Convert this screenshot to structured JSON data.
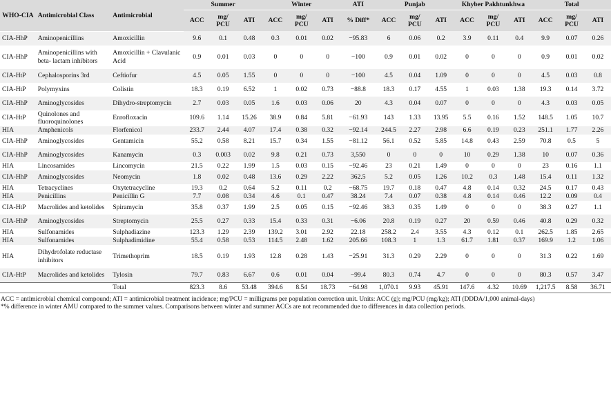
{
  "headers": {
    "who_cia": "WHO-CIA",
    "class": "Antimicrobial Class",
    "antimicrobial": "Antimicrobial",
    "groups": [
      "Summer",
      "Winter",
      "ATI",
      "Punjab",
      "Khyber Pakhtunkhwa",
      "Total"
    ],
    "subs": [
      "ACC",
      "mg/ PCU",
      "ATI",
      "ACC",
      "mg/ PCU",
      "ATI",
      "% Diff*",
      "ACC",
      "mg/ PCU",
      "ATI",
      "ACC",
      "mg/ PCU",
      "ATI",
      "ACC",
      "mg/ PCU",
      "ATI"
    ]
  },
  "rows": [
    [
      "CIA-HhP",
      "Aminopenicillins",
      "Amoxicillin",
      "9.6",
      "0.1",
      "0.48",
      "0.3",
      "0.01",
      "0.02",
      "−95.83",
      "6",
      "0.06",
      "0.2",
      "3.9",
      "0.11",
      "0.4",
      "9.9",
      "0.07",
      "0.26"
    ],
    [
      "CIA-HhP",
      "Aminopenicillins with beta- lactam inhibitors",
      "Amoxicillin + Clavulanic Acid",
      "0.9",
      "0.01",
      "0.03",
      "0",
      "0",
      "0",
      "−100",
      "0.9",
      "0.01",
      "0.02",
      "0",
      "0",
      "0",
      "0.9",
      "0.01",
      "0.02"
    ],
    [
      "CIA-HtP",
      "Cephalosporins 3rd",
      "Ceftiofur",
      "4.5",
      "0.05",
      "1.55",
      "0",
      "0",
      "0",
      "−100",
      "4.5",
      "0.04",
      "1.09",
      "0",
      "0",
      "0",
      "4.5",
      "0.03",
      "0.8"
    ],
    [
      "CIA-HtP",
      "Polymyxins",
      "Colistin",
      "18.3",
      "0.19",
      "6.52",
      "1",
      "0.02",
      "0.73",
      "−88.8",
      "18.3",
      "0.17",
      "4.55",
      "1",
      "0.03",
      "1.38",
      "19.3",
      "0.14",
      "3.72"
    ],
    [
      "CIA-HhP",
      "Aminoglycosides",
      "Dihydro-streptomycin",
      "2.7",
      "0.03",
      "0.05",
      "1.6",
      "0.03",
      "0.06",
      "20",
      "4.3",
      "0.04",
      "0.07",
      "0",
      "0",
      "0",
      "4.3",
      "0.03",
      "0.05"
    ],
    [
      "CIA-HtP",
      "Quinolones and fluoroquinolones",
      "Enrofloxacin",
      "109.6",
      "1.14",
      "15.26",
      "38.9",
      "0.84",
      "5.81",
      "−61.93",
      "143",
      "1.33",
      "13.95",
      "5.5",
      "0.16",
      "1.52",
      "148.5",
      "1.05",
      "10.7"
    ],
    [
      "HIA",
      "Amphenicols",
      "Florfenicol",
      "233.7",
      "2.44",
      "4.07",
      "17.4",
      "0.38",
      "0.32",
      "−92.14",
      "244.5",
      "2.27",
      "2.98",
      "6.6",
      "0.19",
      "0.23",
      "251.1",
      "1.77",
      "2.26"
    ],
    [
      "CIA-HhP",
      "Aminoglycosides",
      "Gentamicin",
      "55.2",
      "0.58",
      "8.21",
      "15.7",
      "0.34",
      "1.55",
      "−81.12",
      "56.1",
      "0.52",
      "5.85",
      "14.8",
      "0.43",
      "2.59",
      "70.8",
      "0.5",
      "5"
    ],
    [
      "CIA-HhP",
      "Aminoglycosides",
      "Kanamycin",
      "0.3",
      "0.003",
      "0.02",
      "9.8",
      "0.21",
      "0.73",
      "3,550",
      "0",
      "0",
      "0",
      "10",
      "0.29",
      "1.38",
      "10",
      "0.07",
      "0.36"
    ],
    [
      "HIA",
      "Lincosamides",
      "Lincomycin",
      "21.5",
      "0.22",
      "1.99",
      "1.5",
      "0.03",
      "0.15",
      "−92.46",
      "23",
      "0.21",
      "1.49",
      "0",
      "0",
      "0",
      "23",
      "0.16",
      "1.1"
    ],
    [
      "CIA-HhP",
      "Aminoglycosides",
      "Neomycin",
      "1.8",
      "0.02",
      "0.48",
      "13.6",
      "0.29",
      "2.22",
      "362.5",
      "5.2",
      "0.05",
      "1.26",
      "10.2",
      "0.3",
      "1.48",
      "15.4",
      "0.11",
      "1.32"
    ],
    [
      "HIA",
      "Tetracyclines",
      "Oxytetracycline",
      "19.3",
      "0.2",
      "0.64",
      "5.2",
      "0.11",
      "0.2",
      "−68.75",
      "19.7",
      "0.18",
      "0.47",
      "4.8",
      "0.14",
      "0.32",
      "24.5",
      "0.17",
      "0.43"
    ],
    [
      "HIA",
      "Penicillins",
      "Penicillin G",
      "7.7",
      "0.08",
      "0.34",
      "4.6",
      "0.1",
      "0.47",
      "38.24",
      "7.4",
      "0.07",
      "0.38",
      "4.8",
      "0.14",
      "0.46",
      "12.2",
      "0.09",
      "0.4"
    ],
    [
      "CIA-HtP",
      "Macrolides and ketolides",
      "Spiramycin",
      "35.8",
      "0.37",
      "1.99",
      "2.5",
      "0.05",
      "0.15",
      "−92.46",
      "38.3",
      "0.35",
      "1.49",
      "0",
      "0",
      "0",
      "38.3",
      "0.27",
      "1.1"
    ],
    [
      "CIA-HhP",
      "Aminoglycosides",
      "Streptomycin",
      "25.5",
      "0.27",
      "0.33",
      "15.4",
      "0.33",
      "0.31",
      "−6.06",
      "20.8",
      "0.19",
      "0.27",
      "20",
      "0.59",
      "0.46",
      "40.8",
      "0.29",
      "0.32"
    ],
    [
      "HIA",
      "Sulfonamides",
      "Sulphadiazine",
      "123.3",
      "1.29",
      "2.39",
      "139.2",
      "3.01",
      "2.92",
      "22.18",
      "258.2",
      "2.4",
      "3.55",
      "4.3",
      "0.12",
      "0.1",
      "262.5",
      "1.85",
      "2.65"
    ],
    [
      "HIA",
      "Sulfonamides",
      "Sulphadimidine",
      "55.4",
      "0.58",
      "0.53",
      "114.5",
      "2.48",
      "1.62",
      "205.66",
      "108.3",
      "1",
      "1.3",
      "61.7",
      "1.81",
      "0.37",
      "169.9",
      "1.2",
      "1.06"
    ],
    [
      "HIA",
      "Dihydrofolate reductase inhibitors",
      "Trimethoprim",
      "18.5",
      "0.19",
      "1.93",
      "12.8",
      "0.28",
      "1.43",
      "−25.91",
      "31.3",
      "0.29",
      "2.29",
      "0",
      "0",
      "0",
      "31.3",
      "0.22",
      "1.69"
    ],
    [
      "CIA-HtP",
      "Macrolides and ketolides",
      "Tylosin",
      "79.7",
      "0.83",
      "6.67",
      "0.6",
      "0.01",
      "0.04",
      "−99.4",
      "80.3",
      "0.74",
      "4.7",
      "0",
      "0",
      "0",
      "80.3",
      "0.57",
      "3.47"
    ]
  ],
  "total": [
    "",
    "",
    "Total",
    "823.3",
    "8.6",
    "53.48",
    "394.6",
    "8.54",
    "18.73",
    "−64.98",
    "1,070.1",
    "9.93",
    "45.91",
    "147.6",
    "4.32",
    "10.69",
    "1,217.5",
    "8.58",
    "36.71"
  ],
  "footnotes": {
    "line1": "ACC = antimicrobial chemical compound; ATI = antimicrobial treatment incidence; mg/PCU = milligrams per population correction unit. Units: ACC (g); mg/PCU (mg/kg); ATI (DDDA/1,000 animal-days)",
    "line2": "*% difference in winter AMU compared to the summer values. Comparisons between winter and summer ACCs  are not recommended due to differences in data collection periods."
  }
}
